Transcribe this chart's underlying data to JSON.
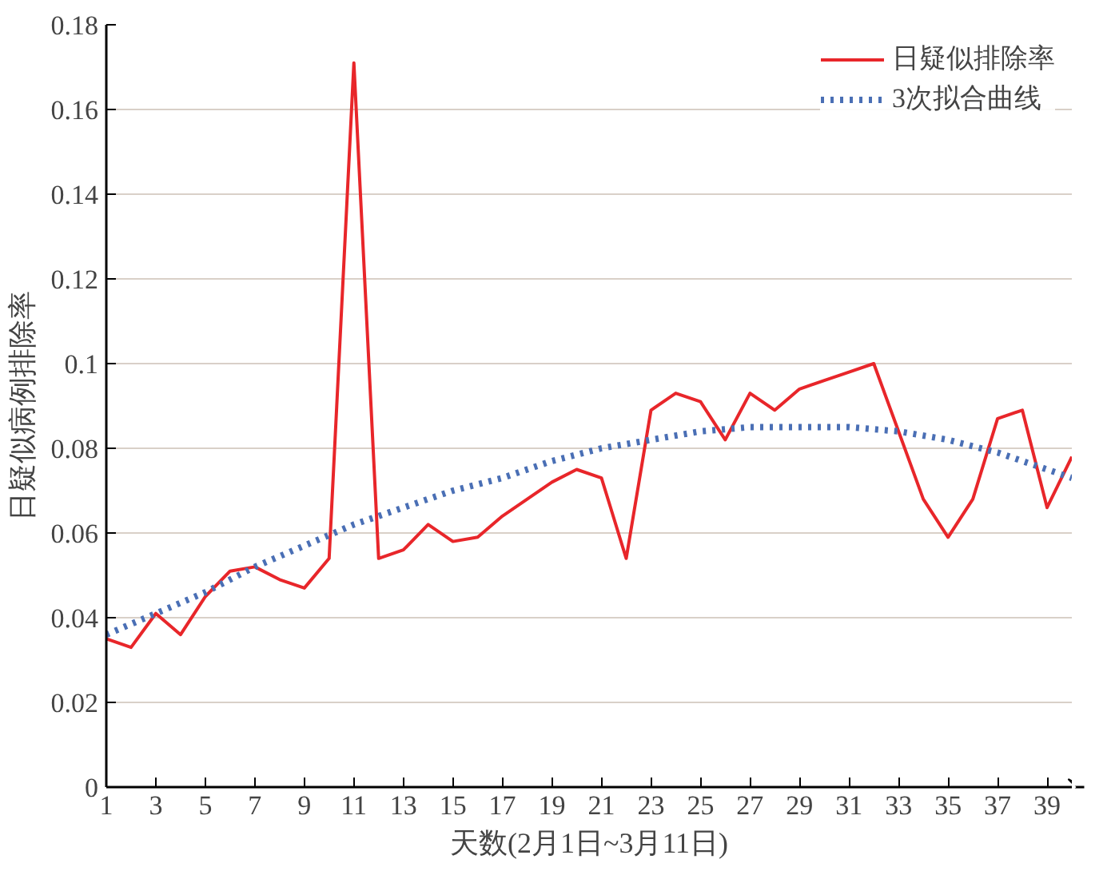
{
  "chart_data": {
    "type": "line",
    "xlabel": "天数(2月1日~3月11日)",
    "ylabel": "日疑似病例排除率",
    "xlim": [
      1,
      40
    ],
    "xticks": [
      1,
      3,
      5,
      7,
      9,
      11,
      13,
      15,
      17,
      19,
      21,
      23,
      25,
      27,
      29,
      31,
      33,
      35,
      37,
      39
    ],
    "ylim": [
      0,
      0.18
    ],
    "yticks": [
      0,
      0.02,
      0.04,
      0.06,
      0.08,
      0.1,
      0.12,
      0.14,
      0.16,
      0.18
    ],
    "grid": "y",
    "legend": "top right",
    "series": [
      {
        "name": "日疑似排除率",
        "color": "#e8262a",
        "line_style": "solid",
        "x": [
          1,
          2,
          3,
          4,
          5,
          6,
          7,
          8,
          9,
          10,
          11,
          12,
          13,
          14,
          15,
          16,
          17,
          18,
          19,
          20,
          21,
          22,
          23,
          24,
          25,
          26,
          27,
          28,
          29,
          30,
          31,
          32,
          33,
          34,
          35,
          36,
          37,
          38,
          39,
          40
        ],
        "values": [
          0.035,
          0.033,
          0.041,
          0.036,
          0.045,
          0.051,
          0.052,
          0.049,
          0.047,
          0.054,
          0.171,
          0.054,
          0.056,
          0.062,
          0.058,
          0.059,
          0.064,
          0.068,
          0.072,
          0.075,
          0.073,
          0.054,
          0.089,
          0.093,
          0.091,
          0.082,
          0.093,
          0.089,
          0.094,
          0.096,
          0.098,
          0.1,
          0.084,
          0.068,
          0.059,
          0.068,
          0.087,
          0.089,
          0.066,
          0.078
        ]
      },
      {
        "name": "3次拟合曲线",
        "color": "#4a6fb5",
        "line_style": "dotted",
        "x": [
          1,
          3,
          5,
          7,
          9,
          11,
          13,
          15,
          17,
          19,
          21,
          23,
          25,
          27,
          29,
          31,
          33,
          35,
          37,
          39,
          40
        ],
        "values": [
          0.036,
          0.041,
          0.046,
          0.052,
          0.057,
          0.062,
          0.066,
          0.07,
          0.073,
          0.077,
          0.08,
          0.082,
          0.084,
          0.085,
          0.085,
          0.085,
          0.084,
          0.082,
          0.079,
          0.075,
          0.073
        ]
      }
    ]
  }
}
